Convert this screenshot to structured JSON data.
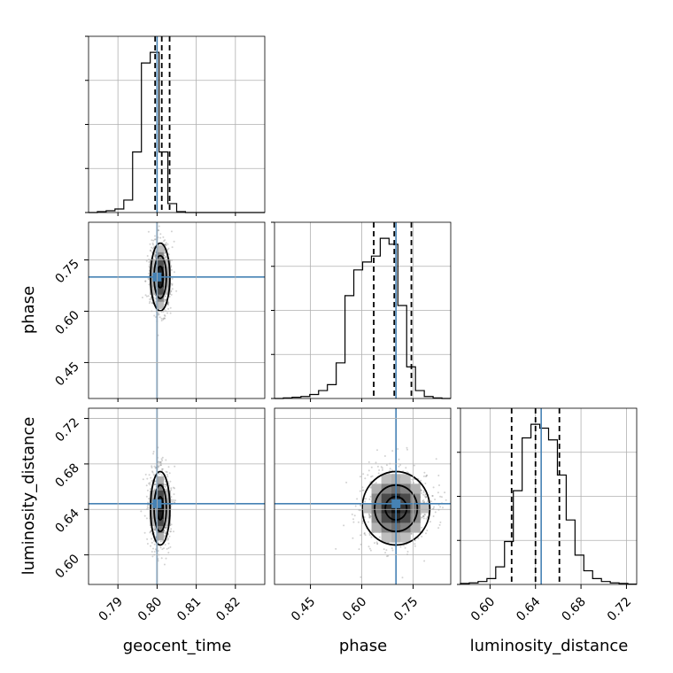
{
  "chart_data": {
    "type": "corner",
    "parameters": [
      "geocent_time",
      "phase",
      "luminosity_distance"
    ],
    "truths": {
      "geocent_time": 0.8,
      "phase": 0.7,
      "luminosity_distance": 0.645
    },
    "quantiles": {
      "geocent_time": [
        0.7995,
        0.8012,
        0.8032
      ],
      "phase": [
        0.635,
        0.695,
        0.745
      ],
      "luminosity_distance": [
        0.619,
        0.64,
        0.661
      ]
    },
    "ranges": {
      "geocent_time": [
        0.7825,
        0.8275
      ],
      "phase": [
        0.345,
        0.86
      ],
      "luminosity_distance": [
        0.574,
        0.729
      ]
    },
    "ticks": {
      "geocent_time": [
        "0.79",
        "0.80",
        "0.81",
        "0.82"
      ],
      "phase": [
        "0.45",
        "0.60",
        "0.75"
      ],
      "luminosity_distance": [
        "0.60",
        "0.64",
        "0.68",
        "0.72"
      ]
    },
    "histograms": {
      "geocent_time": {
        "bin_start": 0.7825,
        "bin_width": 0.00225,
        "counts": [
          0,
          0.5,
          1,
          2,
          7,
          34,
          84,
          90,
          34,
          5,
          0.5,
          0,
          0,
          0,
          0,
          0,
          0,
          0,
          0,
          0
        ]
      },
      "phase": {
        "bin_start": 0.345,
        "bin_width": 0.02575,
        "counts": [
          0,
          0.3,
          0.6,
          1,
          2,
          4,
          7,
          18,
          52,
          65,
          69,
          72,
          81,
          78,
          47,
          16,
          4,
          1,
          0.3,
          0
        ]
      },
      "luminosity_distance": {
        "bin_start": 0.574,
        "bin_width": 0.00775,
        "counts": [
          0.5,
          0.8,
          1.5,
          3,
          9,
          22,
          48,
          75,
          82,
          80,
          74,
          56,
          33,
          15,
          7,
          3,
          1.5,
          0.8,
          0.5,
          0.2
        ]
      }
    },
    "grid": true
  }
}
